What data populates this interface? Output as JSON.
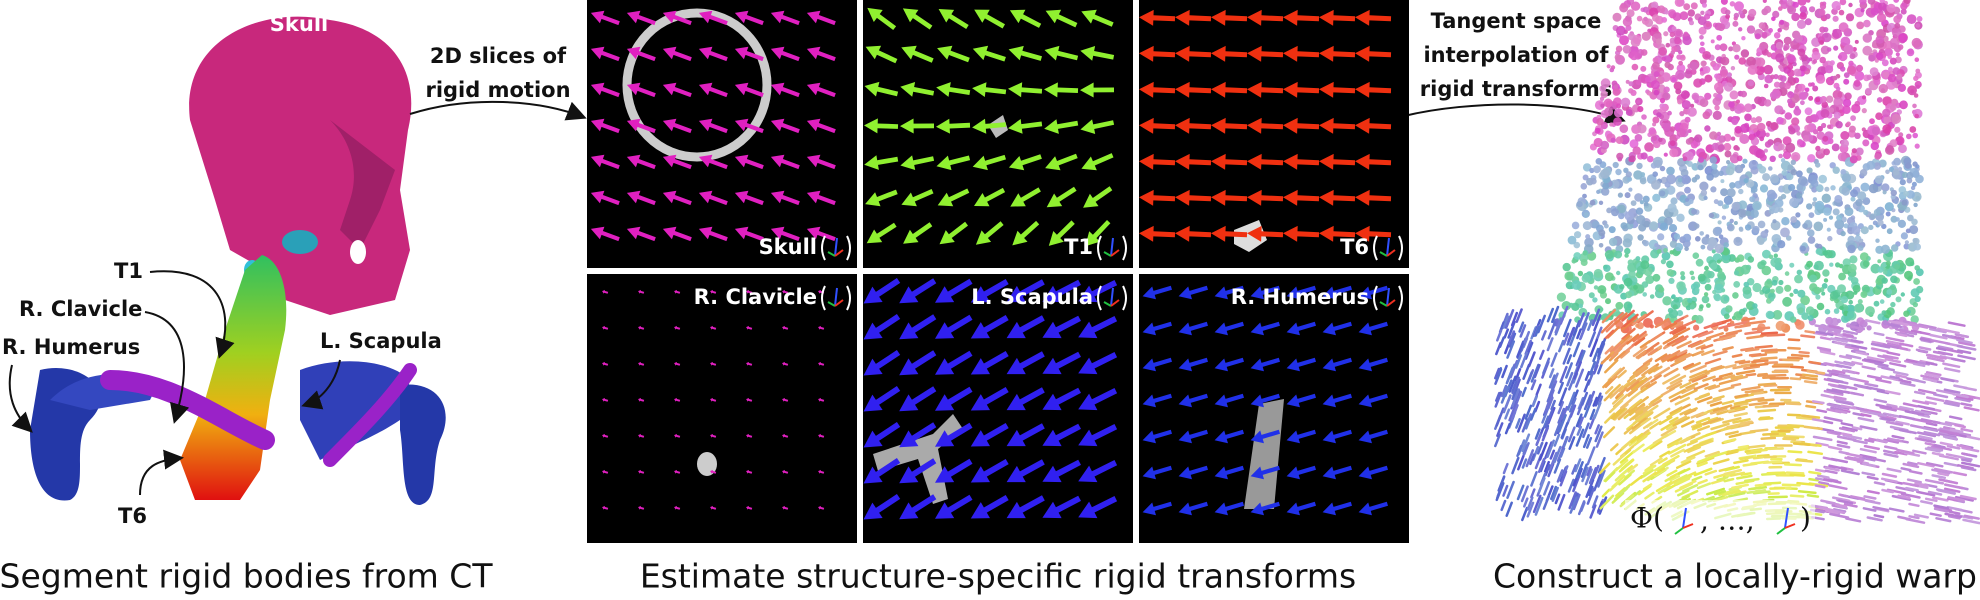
{
  "left": {
    "labels": {
      "skull": "Skull",
      "t1": "T1",
      "clavicle": "R. Clavicle",
      "humerus": "R. Humerus",
      "scapula": "L. Scapula",
      "t6": "T6"
    },
    "caption": "Segment rigid bodies from CT"
  },
  "arrow_left": {
    "lines": [
      "2D slices of",
      "rigid motion"
    ]
  },
  "slices": [
    {
      "label": "Skull",
      "color": "#e020c0"
    },
    {
      "label": "T1",
      "color": "#90f030"
    },
    {
      "label": "T6",
      "color": "#f03010"
    },
    {
      "label": "R. Clavicle",
      "color": "#e020c0"
    },
    {
      "label": "L. Scapula",
      "color": "#3020f0"
    },
    {
      "label": "R. Humerus",
      "color": "#2030e8"
    }
  ],
  "middle": {
    "caption": "Estimate structure-specific rigid transforms"
  },
  "arrow_right": {
    "lines": [
      "Tangent space",
      "interpolation of",
      "rigid transforms"
    ]
  },
  "right": {
    "formula": [
      "Φ(",
      ", …,",
      ")"
    ],
    "caption": "Construct a locally-rigid warp"
  }
}
